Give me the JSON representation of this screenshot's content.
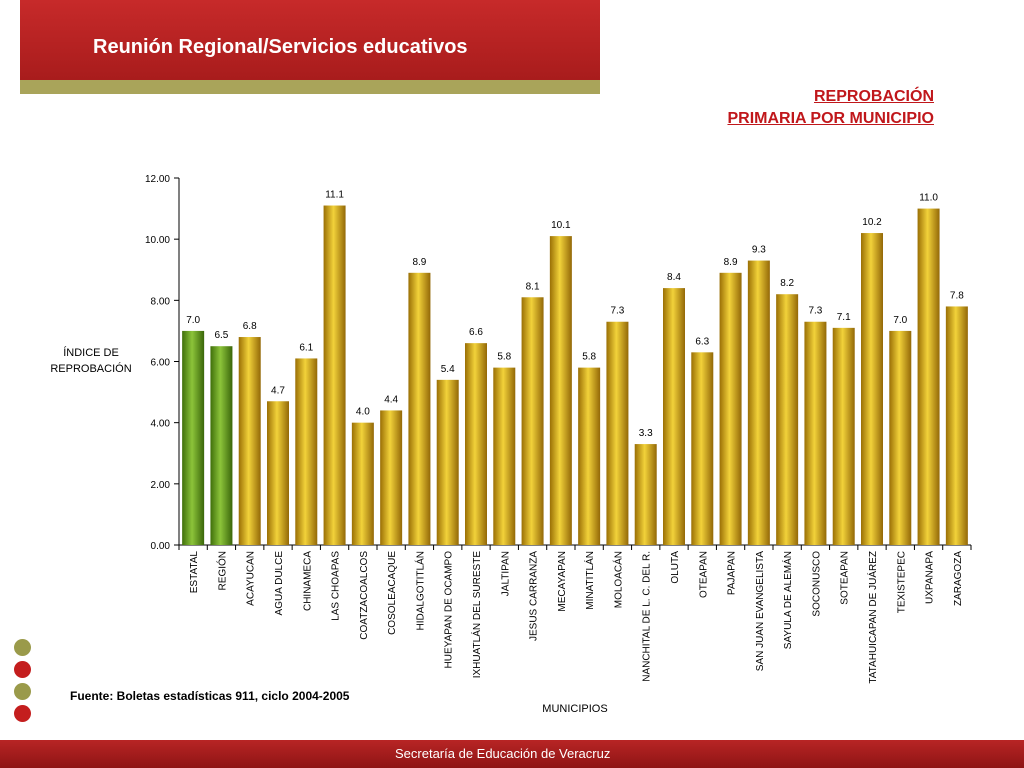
{
  "header": {
    "title": "Reunión Regional/Servicios educativos",
    "heading_line1": "REPROBACIÓN",
    "heading_line2": "PRIMARIA POR MUNICIPIO"
  },
  "source_note": "Fuente: Boletas estadísticas 911, ciclo 2004-2005",
  "footer": {
    "text": "Secretaría de Educación de Veracruz"
  },
  "colors": {
    "banner": "#c72a2a",
    "stripe": "#a9a45a",
    "heading": "#c0171b",
    "bar_green": "#6ea31b",
    "bar_gold": "#d4a90f"
  },
  "chart_data": {
    "type": "bar",
    "ylabel_line1": "ÍNDICE DE",
    "ylabel_line2": "REPROBACIÓN",
    "xlabel": "MUNICIPIOS",
    "ylim": [
      0,
      12
    ],
    "yticks": [
      "0.00",
      "2.00",
      "4.00",
      "6.00",
      "8.00",
      "10.00",
      "12.00"
    ],
    "grid": false,
    "categories": [
      "ESTATAL",
      "REGIÓN",
      "ACAYUCAN",
      "AGUA DULCE",
      "CHINAMECA",
      "LAS CHOAPAS",
      "COATZACOALCOS",
      "COSOLEACAQUE",
      "HIDALGOTITLÁN",
      "HUEYAPAN DE OCAMPO",
      "IXHUATLÁN DEL SURESTE",
      "JALTIPAN",
      "JESUS CARRANZA",
      "MECAYAPAN",
      "MINATITLÁN",
      "MOLOACÁN",
      "NANCHITAL DE L. C. DEL R.",
      "OLUTA",
      "OTEAPAN",
      "PAJAPAN",
      "SAN JUAN EVANGELISTA",
      "SAYULA DE ALEMÁN",
      "SOCONUSCO",
      "SOTEAPAN",
      "TATAHUICAPAN DE JUÁREZ",
      "TEXISTEPEC",
      "UXPANAPA",
      "ZARAGOZA"
    ],
    "values": [
      7.0,
      6.5,
      6.8,
      4.7,
      6.1,
      11.1,
      4.0,
      4.4,
      8.9,
      5.4,
      6.6,
      5.8,
      8.1,
      10.1,
      5.8,
      7.3,
      3.3,
      8.4,
      6.3,
      8.9,
      9.3,
      8.2,
      7.3,
      7.1,
      10.2,
      7.0,
      11.0,
      7.8
    ],
    "data_labels": [
      "7.0",
      "6.5",
      "6.8",
      "4.7",
      "6.1",
      "11.1",
      "4.0",
      "4.4",
      "8.9",
      "5.4",
      "6.6",
      "5.8",
      "8.1",
      "10.1",
      "5.8",
      "7.3",
      "3.3",
      "8.4",
      "6.3",
      "8.9",
      "9.3",
      "8.2",
      "7.3",
      "7.1",
      "10.2",
      "7.0",
      "11.0",
      "7.8"
    ],
    "highlighted": [
      "ESTATAL",
      "REGIÓN"
    ]
  }
}
